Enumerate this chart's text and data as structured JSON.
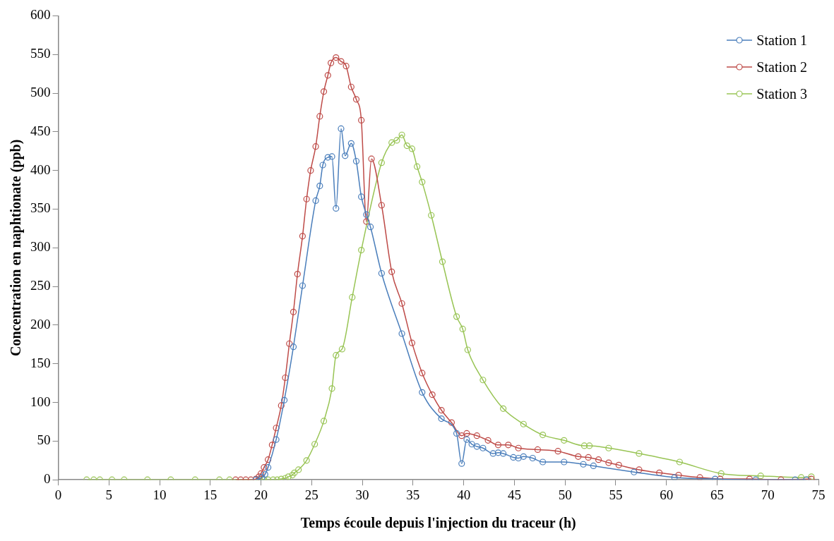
{
  "chart_data": {
    "type": "line",
    "xlabel": "Temps écoule depuis l'injection du traceur (h)",
    "ylabel": "Concentration en naphtionate (ppb)",
    "xlim": [
      0,
      75
    ],
    "xticks": [
      0,
      5,
      10,
      15,
      20,
      25,
      30,
      35,
      40,
      45,
      50,
      55,
      60,
      65,
      70,
      75
    ],
    "ylim": [
      0,
      600
    ],
    "yticks": [
      0,
      50,
      100,
      150,
      200,
      250,
      300,
      350,
      400,
      450,
      500,
      550,
      600
    ],
    "grid": false,
    "legend": "top right",
    "marker": "circle",
    "line_style": "solid",
    "series": [
      {
        "name": "Station 1",
        "color": "#4a7ebb",
        "x": [
          19.5,
          20.1,
          20.4,
          20.7,
          21.5,
          22.3,
          23.2,
          24.1,
          25.4,
          25.8,
          26.1,
          26.6,
          27.0,
          27.4,
          27.9,
          28.3,
          28.9,
          29.4,
          29.9,
          30.4,
          30.8,
          31.9,
          33.9,
          35.9,
          37.8,
          39.3,
          39.8,
          40.3,
          40.8,
          41.3,
          41.9,
          42.9,
          43.4,
          43.9,
          44.9,
          45.4,
          45.9,
          46.8,
          47.8,
          49.9,
          51.8,
          52.8,
          56.8,
          60.8,
          64.8,
          68.8,
          72.7,
          73.8
        ],
        "values": [
          0,
          3,
          7,
          16,
          52,
          103,
          172,
          251,
          361,
          380,
          407,
          417,
          418,
          351,
          454,
          419,
          435,
          412,
          366,
          343,
          327,
          267,
          189,
          113,
          79,
          60,
          21,
          52,
          46,
          43,
          41,
          34,
          35,
          34,
          29,
          28,
          30,
          28,
          23,
          23,
          20,
          18,
          10,
          3,
          1,
          0,
          0,
          0
        ]
      },
      {
        "name": "Station 2",
        "color": "#be4b48",
        "x": [
          17.5,
          18,
          18.5,
          19,
          19.5,
          19.8,
          20,
          20.3,
          20.7,
          21.1,
          21.5,
          22,
          22.4,
          22.8,
          23.2,
          23.6,
          24.1,
          24.5,
          24.9,
          25.4,
          25.8,
          26.2,
          26.6,
          26.9,
          27.4,
          27.9,
          28.4,
          28.9,
          29.4,
          29.9,
          30.4,
          30.9,
          31.9,
          32.9,
          33.9,
          34.9,
          35.9,
          36.9,
          37.8,
          38.8,
          39.8,
          40.3,
          41.3,
          42.4,
          43.4,
          44.4,
          45.4,
          47.3,
          49.3,
          51.3,
          52.3,
          53.3,
          54.3,
          55.3,
          57.3,
          59.3,
          61.2,
          63.3,
          65.3,
          68.2,
          71.3,
          74.3
        ],
        "values": [
          0,
          0,
          0,
          0,
          1,
          4,
          8,
          16,
          26,
          45,
          67,
          96,
          132,
          176,
          217,
          266,
          315,
          363,
          400,
          431,
          470,
          502,
          523,
          539,
          546,
          541,
          535,
          508,
          492,
          465,
          334,
          415,
          355,
          269,
          228,
          177,
          138,
          110,
          90,
          74,
          57,
          60,
          57,
          51,
          45,
          45,
          41,
          39,
          37,
          30,
          29,
          26,
          22,
          19,
          13,
          9,
          6,
          3,
          1,
          1,
          0,
          1
        ]
      },
      {
        "name": "Station 3",
        "color": "#98c454",
        "x": [
          2.8,
          3.5,
          4.1,
          5.3,
          6.5,
          8.8,
          11.1,
          13.5,
          15.9,
          16.9,
          19.9,
          20.3,
          20.7,
          21.2,
          21.6,
          22,
          22.4,
          22.7,
          23.1,
          23.3,
          23.7,
          24.5,
          25.3,
          26.2,
          27.0,
          27.4,
          28,
          29,
          29.9,
          31.9,
          32.9,
          33.4,
          33.9,
          34.4,
          34.9,
          35.4,
          35.9,
          36.8,
          37.9,
          39.3,
          39.9,
          40.4,
          41.9,
          43.9,
          45.9,
          47.8,
          49.9,
          51.9,
          52.4,
          54.3,
          57.3,
          61.3,
          65.4,
          69.3,
          73.3,
          74.3
        ],
        "values": [
          0,
          0,
          0,
          0,
          0,
          0,
          0,
          0,
          0,
          0,
          0,
          0,
          0,
          0,
          0,
          1,
          2,
          4,
          6,
          9,
          13,
          25,
          46,
          76,
          118,
          161,
          169,
          236,
          297,
          410,
          436,
          439,
          446,
          432,
          428,
          405,
          385,
          342,
          282,
          211,
          195,
          168,
          129,
          92,
          72,
          58,
          51,
          44,
          44,
          41,
          34,
          23,
          8,
          5,
          3,
          4
        ]
      }
    ]
  }
}
